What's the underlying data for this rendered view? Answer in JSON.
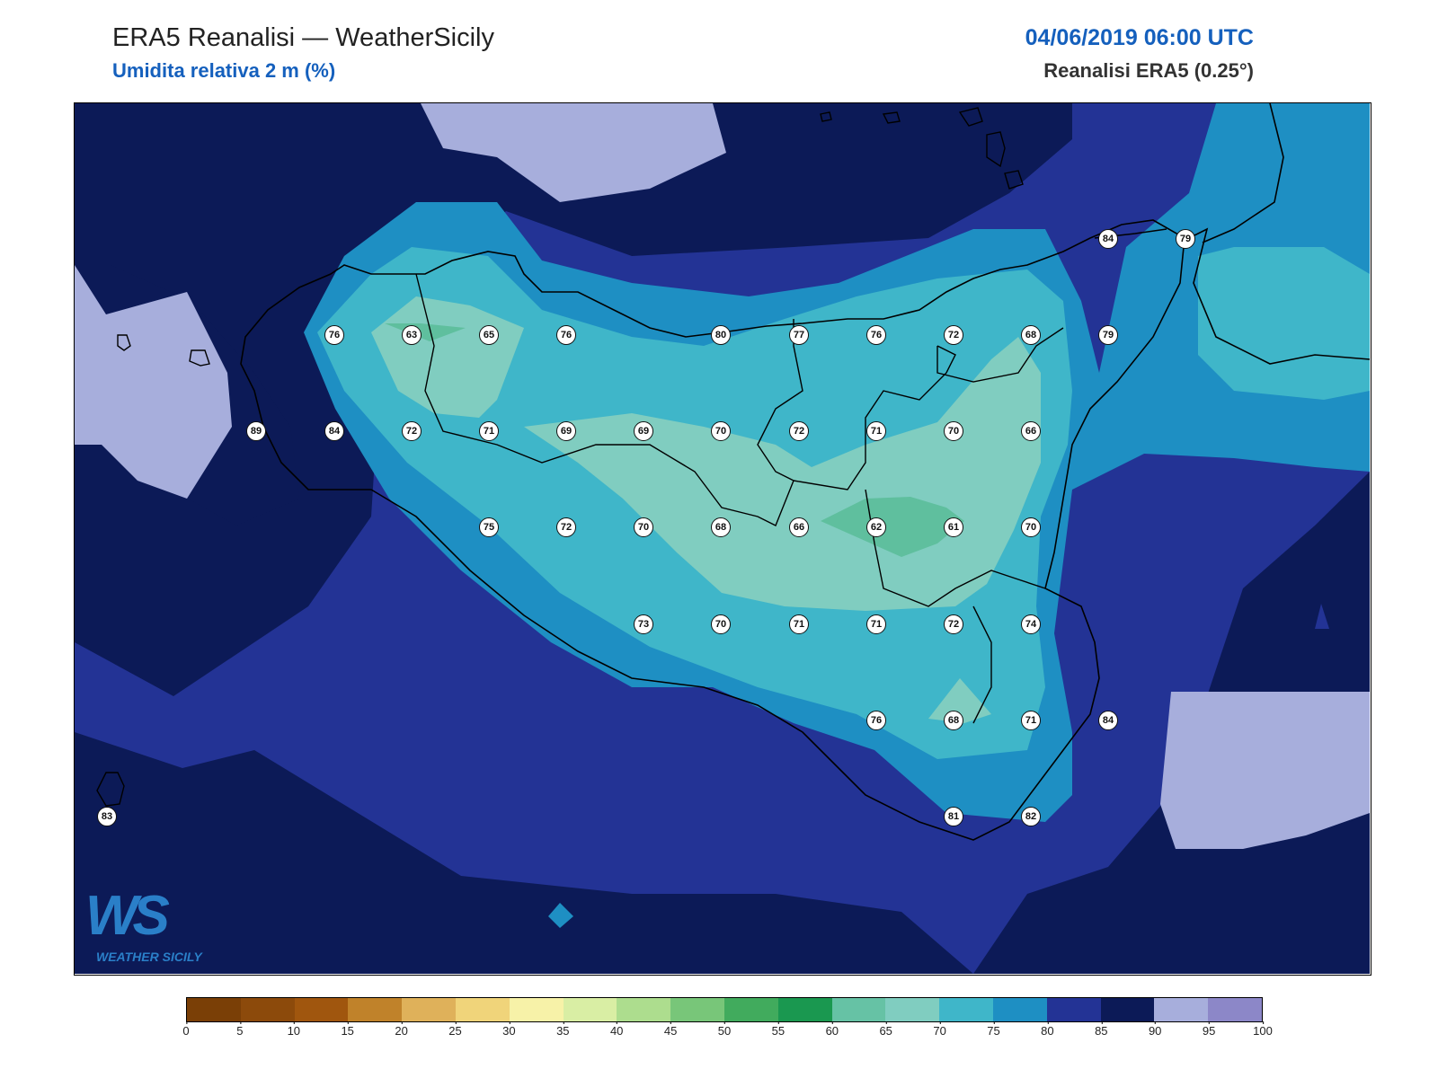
{
  "header": {
    "title": "ERA5 Reanalisi — WeatherSicily",
    "subtitle": "Umidita relativa 2 m (%)",
    "datetime": "04/06/2019 06:00 UTC",
    "source": "Reanalisi ERA5 (0.25°)"
  },
  "logo": {
    "letters": "WS",
    "text": "WEATHER SICILY"
  },
  "colors": {
    "very_high": "#0c1a57",
    "high": "#233395",
    "band_80": "#1e8fc3",
    "band_75": "#3fb6c9",
    "band_70": "#80cdc0",
    "band_65": "#5fbf9e",
    "saturated": "#a7aedc"
  },
  "stations": [
    {
      "value": "76"
    },
    {
      "value": "63"
    },
    {
      "value": "65"
    },
    {
      "value": "76"
    },
    {
      "value": "80"
    },
    {
      "value": "77"
    },
    {
      "value": "76"
    },
    {
      "value": "72"
    },
    {
      "value": "68"
    },
    {
      "value": "79"
    },
    {
      "value": "84"
    },
    {
      "value": "79"
    },
    {
      "value": "89"
    },
    {
      "value": "84"
    },
    {
      "value": "72"
    },
    {
      "value": "71"
    },
    {
      "value": "69"
    },
    {
      "value": "69"
    },
    {
      "value": "70"
    },
    {
      "value": "72"
    },
    {
      "value": "71"
    },
    {
      "value": "70"
    },
    {
      "value": "66"
    },
    {
      "value": "75"
    },
    {
      "value": "72"
    },
    {
      "value": "70"
    },
    {
      "value": "68"
    },
    {
      "value": "66"
    },
    {
      "value": "62"
    },
    {
      "value": "61"
    },
    {
      "value": "70"
    },
    {
      "value": "73"
    },
    {
      "value": "70"
    },
    {
      "value": "71"
    },
    {
      "value": "71"
    },
    {
      "value": "72"
    },
    {
      "value": "74"
    },
    {
      "value": "76"
    },
    {
      "value": "68"
    },
    {
      "value": "71"
    },
    {
      "value": "84"
    },
    {
      "value": "83"
    },
    {
      "value": "81"
    },
    {
      "value": "82"
    }
  ],
  "colorbar": {
    "ticks": [
      "0",
      "5",
      "10",
      "15",
      "20",
      "25",
      "30",
      "35",
      "40",
      "45",
      "50",
      "55",
      "60",
      "65",
      "70",
      "75",
      "80",
      "85",
      "90",
      "95",
      "100"
    ],
    "colors": [
      "#7a3f06",
      "#8c4a0b",
      "#a0560e",
      "#c0822a",
      "#dfb15a",
      "#f0d47a",
      "#f7f2a8",
      "#d9eea4",
      "#addd8e",
      "#78c679",
      "#41ab5d",
      "#1a9850",
      "#66c2a5",
      "#80cdc0",
      "#3fb6c9",
      "#1e8fc3",
      "#233395",
      "#0c1a57",
      "#a7aedc",
      "#8c87c8"
    ]
  }
}
